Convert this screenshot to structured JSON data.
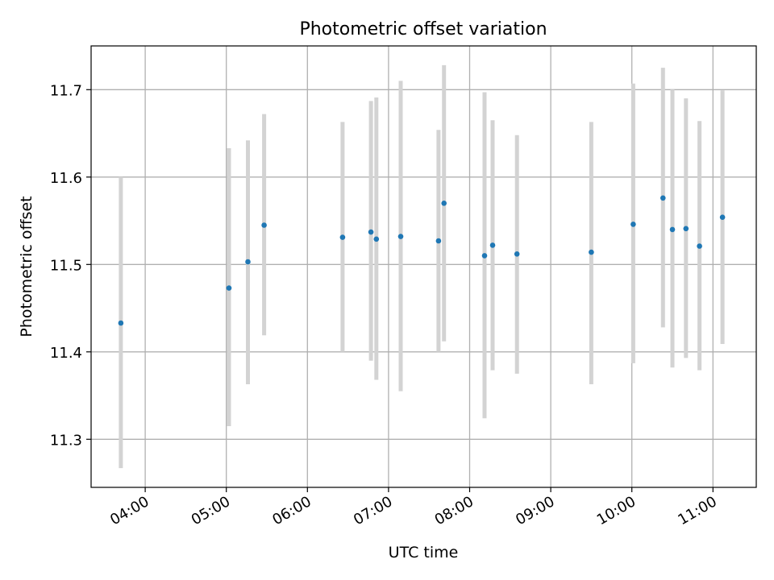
{
  "chart_data": {
    "type": "scatter",
    "title": "Photometric offset variation",
    "xlabel": "UTC time",
    "ylabel": "Photometric offset",
    "x_axis_kind": "time (HH:MM)",
    "xlim": [
      "03:20",
      "11:32"
    ],
    "ylim": [
      11.245,
      11.75
    ],
    "x_ticks": [
      "04:00",
      "05:00",
      "06:00",
      "07:00",
      "08:00",
      "09:00",
      "10:00",
      "11:00"
    ],
    "y_ticks": [
      11.3,
      11.4,
      11.5,
      11.6,
      11.7
    ],
    "y_tick_labels": [
      "11.3",
      "11.4",
      "11.5",
      "11.6",
      "11.7"
    ],
    "grid": true,
    "legend": "none",
    "series": [
      {
        "marker_color": "#1f77b4",
        "errorbar_color": "#d3d3d3",
        "points": [
          {
            "time": "03:42",
            "y": 11.433,
            "y_low": 11.267,
            "y_high": 11.6
          },
          {
            "time": "05:02",
            "y": 11.473,
            "y_low": 11.315,
            "y_high": 11.633
          },
          {
            "time": "05:16",
            "y": 11.503,
            "y_low": 11.363,
            "y_high": 11.642
          },
          {
            "time": "05:28",
            "y": 11.545,
            "y_low": 11.419,
            "y_high": 11.672
          },
          {
            "time": "06:26",
            "y": 11.531,
            "y_low": 11.4,
            "y_high": 11.663
          },
          {
            "time": "06:47",
            "y": 11.537,
            "y_low": 11.39,
            "y_high": 11.687
          },
          {
            "time": "06:51",
            "y": 11.529,
            "y_low": 11.368,
            "y_high": 11.691
          },
          {
            "time": "07:09",
            "y": 11.532,
            "y_low": 11.355,
            "y_high": 11.71
          },
          {
            "time": "07:37",
            "y": 11.527,
            "y_low": 11.4,
            "y_high": 11.654
          },
          {
            "time": "07:41",
            "y": 11.57,
            "y_low": 11.412,
            "y_high": 11.728
          },
          {
            "time": "08:11",
            "y": 11.51,
            "y_low": 11.324,
            "y_high": 11.697
          },
          {
            "time": "08:17",
            "y": 11.522,
            "y_low": 11.379,
            "y_high": 11.665
          },
          {
            "time": "08:35",
            "y": 11.512,
            "y_low": 11.375,
            "y_high": 11.648
          },
          {
            "time": "09:30",
            "y": 11.514,
            "y_low": 11.363,
            "y_high": 11.663
          },
          {
            "time": "10:01",
            "y": 11.546,
            "y_low": 11.387,
            "y_high": 11.707
          },
          {
            "time": "10:23",
            "y": 11.576,
            "y_low": 11.428,
            "y_high": 11.725
          },
          {
            "time": "10:30",
            "y": 11.54,
            "y_low": 11.382,
            "y_high": 11.7
          },
          {
            "time": "10:40",
            "y": 11.541,
            "y_low": 11.393,
            "y_high": 11.69
          },
          {
            "time": "10:50",
            "y": 11.521,
            "y_low": 11.379,
            "y_high": 11.664
          },
          {
            "time": "11:07",
            "y": 11.554,
            "y_low": 11.409,
            "y_high": 11.699
          }
        ]
      }
    ]
  }
}
